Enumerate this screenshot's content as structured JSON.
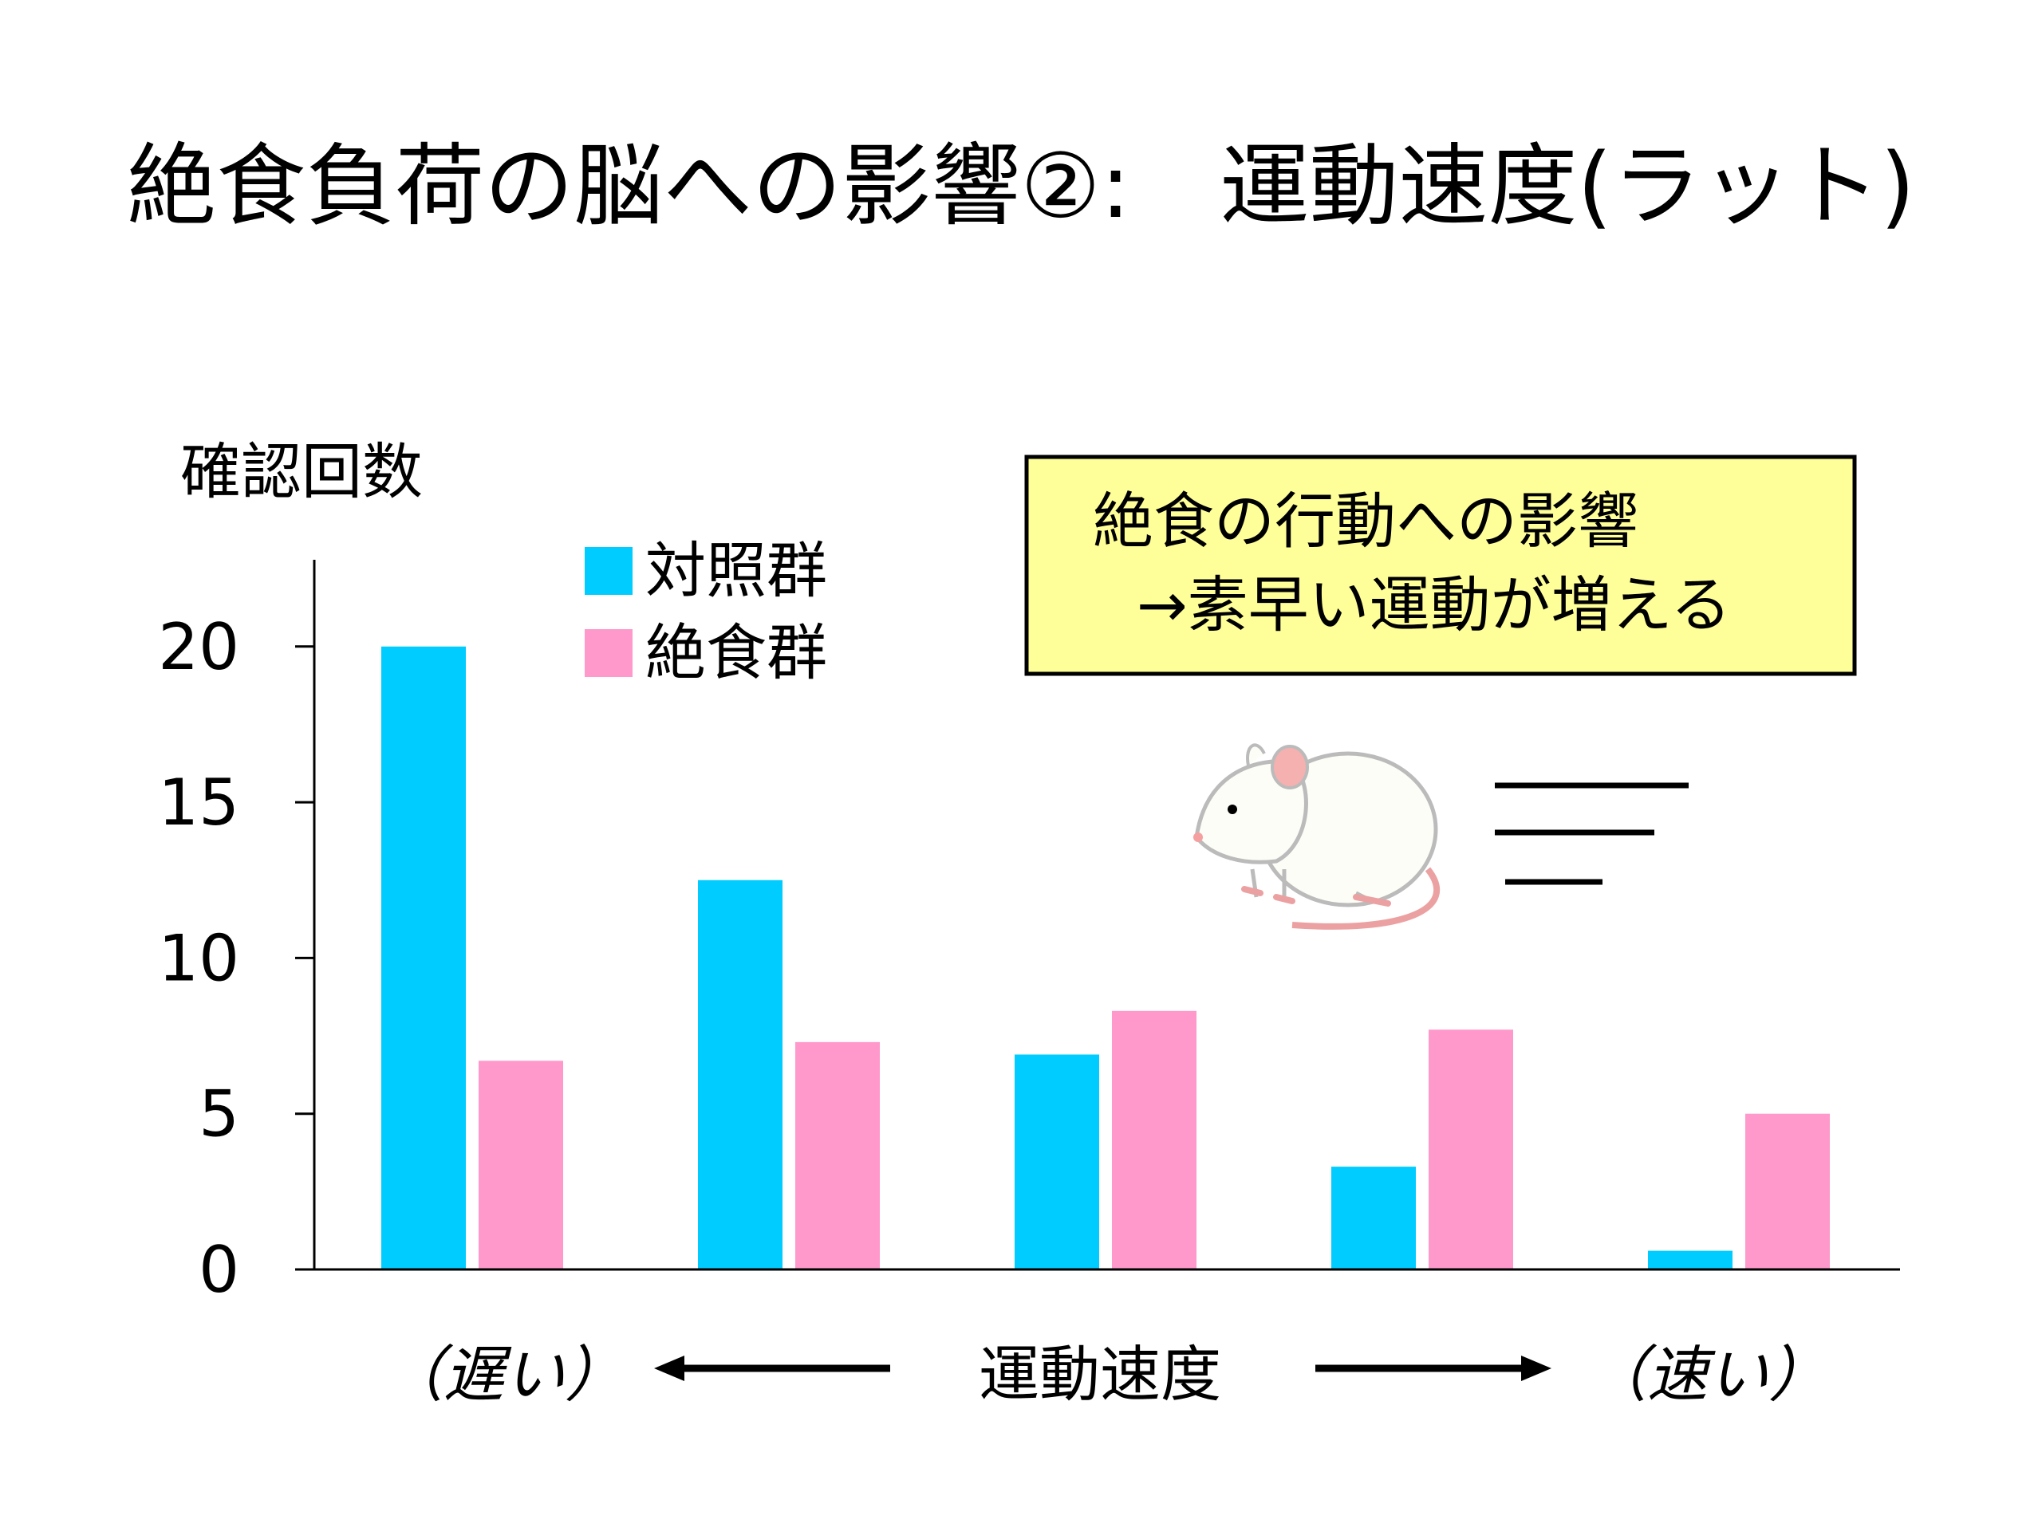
{
  "title": "絶食負荷の脳への影響②:　運動速度(ラット)",
  "colors": {
    "control": "#00CCFF",
    "fasted": "#FF99CC",
    "box_fill": "#FFFF99"
  },
  "callout": {
    "line1": "絶食の行動への影響",
    "line2": "→素早い運動が増える"
  },
  "chart_data": {
    "type": "bar",
    "title": "絶食負荷の脳への影響②:　運動速度(ラット)",
    "ylabel": "確認回数",
    "xlabel": "運動速度",
    "xlabel_left": "（遅い）",
    "xlabel_right": "（速い）",
    "ylim": [
      0,
      23
    ],
    "yticks": [
      0,
      5,
      10,
      15,
      20
    ],
    "ytick_labels": [
      "0",
      "5",
      "10",
      "15",
      "20"
    ],
    "categories": [
      "1",
      "2",
      "3",
      "4",
      "5"
    ],
    "legend_position": "top-left",
    "grid": false,
    "series": [
      {
        "name": "対照群",
        "color": "#00CCFF",
        "values": [
          20.0,
          12.5,
          6.9,
          3.3,
          0.6
        ]
      },
      {
        "name": "絶食群",
        "color": "#FF99CC",
        "values": [
          6.7,
          7.3,
          8.3,
          7.7,
          5.0
        ]
      }
    ]
  }
}
